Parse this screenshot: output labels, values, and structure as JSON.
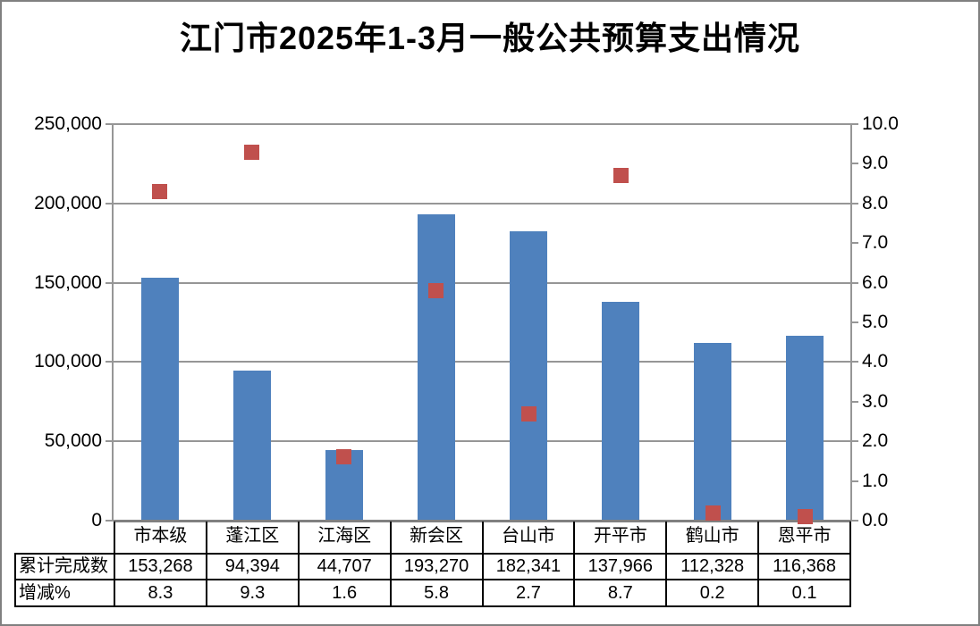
{
  "title": "江门市2025年1-3月一般公共预算支出情况",
  "chart_data": {
    "type": "bar",
    "subtype": "bar-and-scatter-combo",
    "title": "江门市2025年1-3月一般公共预算支出情况",
    "categories": [
      "市本级",
      "蓬江区",
      "江海区",
      "新会区",
      "台山市",
      "开平市",
      "鹤山市",
      "恩平市"
    ],
    "series": [
      {
        "name": "累计完成数",
        "type": "bar",
        "axis": "left",
        "color": "#4F81BD",
        "values": [
          153268,
          94394,
          44707,
          193270,
          182341,
          137966,
          112328,
          116368
        ]
      },
      {
        "name": "增减%",
        "type": "scatter",
        "marker": "square",
        "axis": "right",
        "color": "#C0504D",
        "values": [
          8.3,
          9.3,
          1.6,
          5.8,
          2.7,
          8.7,
          0.2,
          0.1
        ]
      }
    ],
    "left_axis": {
      "min": 0,
      "max": 250000,
      "step": 50000,
      "tick_labels": [
        "0",
        "50,000",
        "100,000",
        "150,000",
        "200,000",
        "250,000"
      ]
    },
    "right_axis": {
      "min": 0,
      "max": 10,
      "step": 1,
      "tick_labels": [
        "0.0",
        "1.0",
        "2.0",
        "3.0",
        "4.0",
        "5.0",
        "6.0",
        "7.0",
        "8.0",
        "9.0",
        "10.0"
      ]
    },
    "grid": true,
    "legend_position": "none"
  },
  "data_table": {
    "column_headers": [
      "市本级",
      "蓬江区",
      "江海区",
      "新会区",
      "台山市",
      "开平市",
      "鹤山市",
      "恩平市"
    ],
    "rows": [
      {
        "header": "累计完成数",
        "cells": [
          "153,268",
          "94,394",
          "44,707",
          "193,270",
          "182,341",
          "137,966",
          "112,328",
          "116,368"
        ]
      },
      {
        "header": "增减%",
        "cells": [
          "8.3",
          "9.3",
          "1.6",
          "5.8",
          "2.7",
          "8.7",
          "0.2",
          "0.1"
        ]
      }
    ]
  },
  "colors": {
    "bar": "#4F81BD",
    "marker": "#C0504D",
    "grid": "#969696",
    "axis": "#808080",
    "table_border": "#000000",
    "frame": "#808080",
    "background": "#FFFFFF",
    "text": "#000000"
  }
}
